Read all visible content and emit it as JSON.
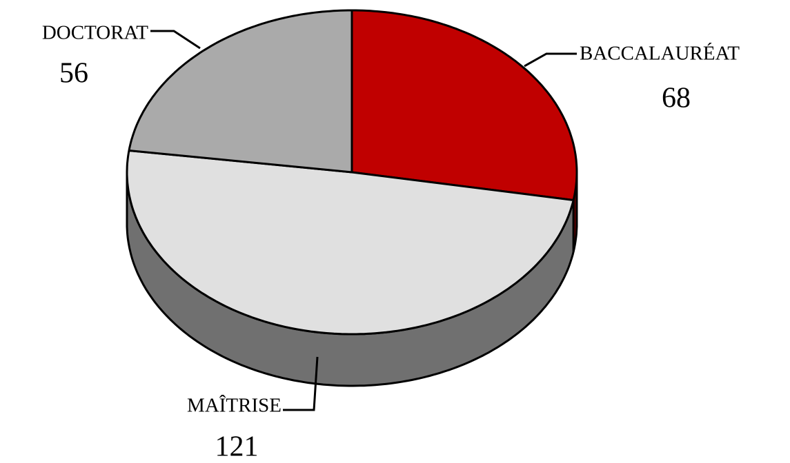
{
  "chart_data": {
    "type": "pie",
    "categories": [
      "BACCALAURÉAT",
      "MAÎTRISE",
      "DOCTORAT"
    ],
    "values": [
      68,
      121,
      56
    ],
    "colors": [
      "#c00000",
      "#e0e0e0",
      "#aaaaaa"
    ]
  }
}
